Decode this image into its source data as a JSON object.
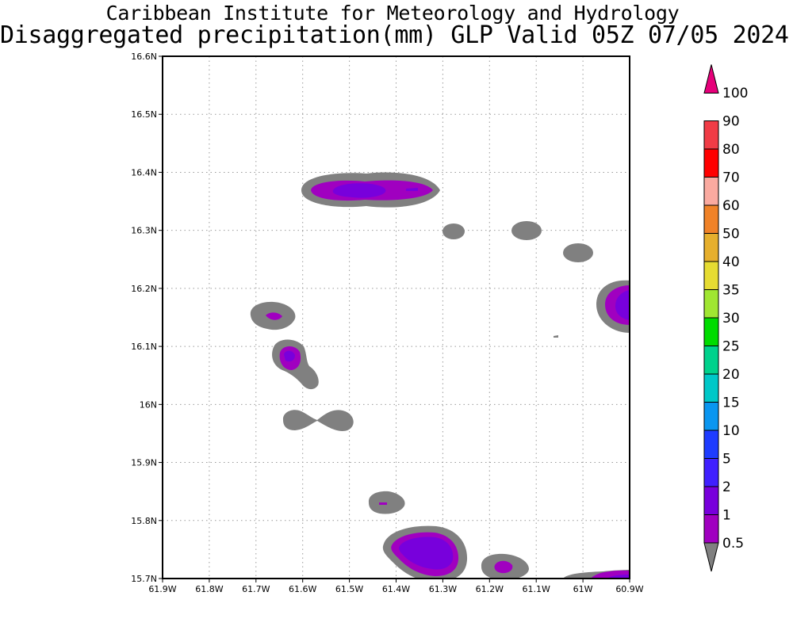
{
  "header": {
    "institute": "Caribbean Institute for Meteorology and Hydrology",
    "product": "Disaggregated precipitation(mm) GLP Valid 05Z 07/05 2024"
  },
  "map": {
    "lon_range": [
      -61.9,
      -60.9
    ],
    "lat_range": [
      15.7,
      16.6
    ],
    "x_ticks": [
      "61.9W",
      "61.8W",
      "61.7W",
      "61.6W",
      "61.5W",
      "61.4W",
      "61.3W",
      "61.2W",
      "61.1W",
      "61W",
      "60.9W"
    ],
    "y_ticks": [
      "16.6N",
      "16.5N",
      "16.4N",
      "16.3N",
      "16.2N",
      "16.1N",
      "16N",
      "15.9N",
      "15.8N",
      "15.7N"
    ],
    "grid": "dotted"
  },
  "legend": {
    "levels": [
      "0.5",
      "1",
      "2",
      "5",
      "10",
      "15",
      "20",
      "25",
      "30",
      "35",
      "40",
      "50",
      "60",
      "70",
      "80",
      "90",
      "100"
    ],
    "colors": [
      "#808080",
      "#a000c0",
      "#7800dc",
      "#4020ff",
      "#1e3cff",
      "#0a96f0",
      "#00c8c8",
      "#00d28c",
      "#00dc00",
      "#a0e632",
      "#e6dc32",
      "#e6af2d",
      "#f08228",
      "#faaaa0",
      "#ff0000",
      "#f03c46",
      "#e6007a"
    ]
  }
}
